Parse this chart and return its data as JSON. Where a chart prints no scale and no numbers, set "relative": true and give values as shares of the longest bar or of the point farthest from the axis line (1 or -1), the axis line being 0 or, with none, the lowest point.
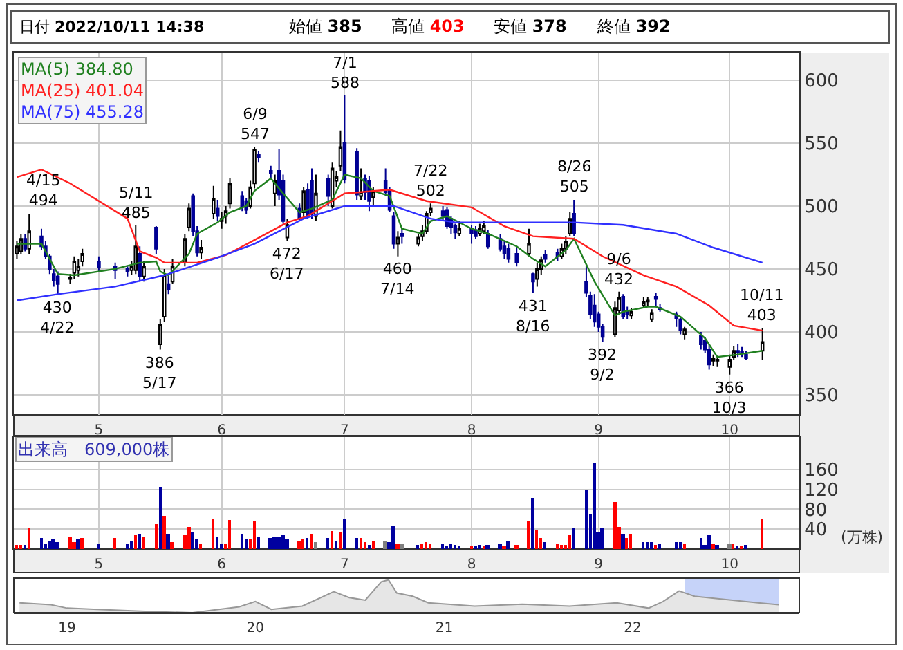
{
  "chart_data": [
    {
      "type": "candlestick",
      "annotations": [
        "日付 2022/10/11 14:38",
        "始値 385",
        "高値 403",
        "安値 378",
        "終値 392",
        {
          "text": "4/15\n494",
          "x": "2022-04-15",
          "y": 494
        },
        {
          "text": "430\n4/22",
          "x": "2022-04-22",
          "y": 430
        },
        {
          "text": "5/11\n485",
          "x": "2022-05-11",
          "y": 485
        },
        {
          "text": "386\n5/17",
          "x": "2022-05-17",
          "y": 386
        },
        {
          "text": "6/9\n547",
          "x": "2022-06-09",
          "y": 547
        },
        {
          "text": "472\n6/17",
          "x": "2022-06-17",
          "y": 472
        },
        {
          "text": "7/1\n588",
          "x": "2022-07-01",
          "y": 588
        },
        {
          "text": "460\n7/14",
          "x": "2022-07-14",
          "y": 460
        },
        {
          "text": "7/22\n502",
          "x": "2022-07-22",
          "y": 502
        },
        {
          "text": "431\n8/16",
          "x": "2022-08-16",
          "y": 431
        },
        {
          "text": "8/26\n505",
          "x": "2022-08-26",
          "y": 505
        },
        {
          "text": "392\n9/2",
          "x": "2022-09-02",
          "y": 392
        },
        {
          "text": "9/6\n432",
          "x": "2022-09-06",
          "y": 432
        },
        {
          "text": "366\n10/3",
          "x": "2022-10-03",
          "y": 366
        },
        {
          "text": "10/11\n403",
          "x": "2022-10-11",
          "y": 403
        }
      ],
      "x": [
        "2022-04-12",
        "2022-04-13",
        "2022-04-14",
        "2022-04-15",
        "2022-04-18",
        "2022-04-19",
        "2022-04-20",
        "2022-04-21",
        "2022-04-22",
        "2022-04-25",
        "2022-04-26",
        "2022-04-27",
        "2022-04-28",
        "2022-05-02",
        "2022-05-06",
        "2022-05-09",
        "2022-05-10",
        "2022-05-11",
        "2022-05-12",
        "2022-05-13",
        "2022-05-16",
        "2022-05-17",
        "2022-05-18",
        "2022-05-19",
        "2022-05-20",
        "2022-05-23",
        "2022-05-24",
        "2022-05-25",
        "2022-05-26",
        "2022-05-27",
        "2022-05-30",
        "2022-05-31",
        "2022-06-01",
        "2022-06-02",
        "2022-06-03",
        "2022-06-06",
        "2022-06-07",
        "2022-06-08",
        "2022-06-09",
        "2022-06-10",
        "2022-06-13",
        "2022-06-14",
        "2022-06-15",
        "2022-06-16",
        "2022-06-17",
        "2022-06-20",
        "2022-06-21",
        "2022-06-22",
        "2022-06-23",
        "2022-06-24",
        "2022-06-27",
        "2022-06-28",
        "2022-06-29",
        "2022-06-30",
        "2022-07-01",
        "2022-07-04",
        "2022-07-05",
        "2022-07-06",
        "2022-07-07",
        "2022-07-08",
        "2022-07-11",
        "2022-07-12",
        "2022-07-13",
        "2022-07-14",
        "2022-07-15",
        "2022-07-19",
        "2022-07-20",
        "2022-07-21",
        "2022-07-22",
        "2022-07-25",
        "2022-07-26",
        "2022-07-27",
        "2022-07-28",
        "2022-07-29",
        "2022-08-01",
        "2022-08-02",
        "2022-08-03",
        "2022-08-04",
        "2022-08-05",
        "2022-08-08",
        "2022-08-09",
        "2022-08-10",
        "2022-08-12",
        "2022-08-15",
        "2022-08-16",
        "2022-08-17",
        "2022-08-18",
        "2022-08-19",
        "2022-08-22",
        "2022-08-23",
        "2022-08-24",
        "2022-08-25",
        "2022-08-26",
        "2022-08-29",
        "2022-08-30",
        "2022-08-31",
        "2022-09-01",
        "2022-09-02",
        "2022-09-05",
        "2022-09-06",
        "2022-09-07",
        "2022-09-08",
        "2022-09-09",
        "2022-09-12",
        "2022-09-13",
        "2022-09-14",
        "2022-09-15",
        "2022-09-16",
        "2022-09-20",
        "2022-09-21",
        "2022-09-22",
        "2022-09-26",
        "2022-09-27",
        "2022-09-28",
        "2022-09-29",
        "2022-09-30",
        "2022-10-03",
        "2022-10-04",
        "2022-10-05",
        "2022-10-06",
        "2022-10-07",
        "2022-10-11"
      ],
      "ohlc": [
        [
          462,
          472,
          458,
          468
        ],
        [
          464,
          478,
          462,
          474
        ],
        [
          474,
          478,
          464,
          466
        ],
        [
          466,
          494,
          462,
          480
        ],
        [
          476,
          482,
          465,
          468
        ],
        [
          468,
          472,
          458,
          460
        ],
        [
          460,
          462,
          446,
          450
        ],
        [
          446,
          450,
          436,
          441
        ],
        [
          444,
          448,
          430,
          438
        ],
        [
          442,
          446,
          438,
          443
        ],
        [
          447,
          460,
          442,
          456
        ],
        [
          449,
          458,
          444,
          452
        ],
        [
          456,
          466,
          452,
          462
        ],
        [
          456,
          460,
          448,
          451
        ],
        [
          452,
          455,
          442,
          449
        ],
        [
          450,
          452,
          444,
          448
        ],
        [
          449,
          456,
          445,
          452
        ],
        [
          449,
          485,
          446,
          468
        ],
        [
          462,
          468,
          440,
          444
        ],
        [
          444,
          456,
          440,
          452
        ],
        [
          483,
          484,
          462,
          466
        ],
        [
          390,
          410,
          386,
          406
        ],
        [
          412,
          450,
          408,
          445
        ],
        [
          438,
          445,
          430,
          434
        ],
        [
          440,
          458,
          438,
          452
        ],
        [
          455,
          478,
          452,
          474
        ],
        [
          483,
          502,
          480,
          498
        ],
        [
          508,
          510,
          476,
          480
        ],
        [
          480,
          484,
          460,
          463
        ],
        [
          463,
          473,
          458,
          467
        ],
        [
          494,
          516,
          490,
          506
        ],
        [
          498,
          505,
          488,
          492
        ],
        [
          488,
          495,
          482,
          490
        ],
        [
          492,
          500,
          486,
          496
        ],
        [
          502,
          522,
          498,
          518
        ],
        [
          508,
          512,
          496,
          500
        ],
        [
          504,
          506,
          494,
          497
        ],
        [
          500,
          520,
          498,
          515
        ],
        [
          518,
          547,
          514,
          545
        ],
        [
          541,
          544,
          535,
          539
        ],
        [
          528,
          532,
          522,
          526
        ],
        [
          510,
          525,
          500,
          520
        ],
        [
          528,
          545,
          505,
          509
        ],
        [
          520,
          525,
          486,
          488
        ],
        [
          475,
          490,
          472,
          485
        ],
        [
          498,
          502,
          488,
          490
        ],
        [
          495,
          515,
          490,
          512
        ],
        [
          513,
          518,
          490,
          492
        ],
        [
          520,
          530,
          490,
          494
        ],
        [
          492,
          525,
          488,
          510
        ],
        [
          522,
          525,
          500,
          508
        ],
        [
          500,
          535,
          498,
          530
        ],
        [
          520,
          528,
          515,
          523
        ],
        [
          532,
          560,
          528,
          547
        ],
        [
          550,
          588,
          518,
          521
        ],
        [
          543,
          546,
          505,
          509
        ],
        [
          508,
          530,
          505,
          511
        ],
        [
          522,
          525,
          505,
          511
        ],
        [
          520,
          524,
          496,
          504
        ],
        [
          507,
          515,
          500,
          512
        ],
        [
          520,
          530,
          508,
          511
        ],
        [
          513,
          515,
          495,
          497
        ],
        [
          492,
          495,
          466,
          470
        ],
        [
          470,
          480,
          460,
          475
        ],
        [
          478,
          482,
          470,
          476
        ],
        [
          470,
          478,
          468,
          475
        ],
        [
          476,
          485,
          472,
          480
        ],
        [
          480,
          496,
          478,
          494
        ],
        [
          495,
          502,
          492,
          498
        ],
        [
          496,
          500,
          488,
          492
        ],
        [
          497,
          499,
          482,
          484
        ],
        [
          490,
          492,
          478,
          483
        ],
        [
          484,
          486,
          474,
          479
        ],
        [
          478,
          488,
          476,
          482
        ],
        [
          482,
          485,
          470,
          478
        ],
        [
          481,
          484,
          474,
          476
        ],
        [
          478,
          486,
          476,
          482
        ],
        [
          480,
          488,
          478,
          484
        ],
        [
          478,
          481,
          466,
          468
        ],
        [
          474,
          478,
          464,
          466
        ],
        [
          468,
          472,
          458,
          462
        ],
        [
          466,
          470,
          455,
          458
        ],
        [
          462,
          468,
          452,
          455
        ],
        [
          462,
          482,
          460,
          470
        ],
        [
          446,
          447,
          431,
          440
        ],
        [
          442,
          455,
          436,
          450
        ],
        [
          450,
          460,
          445,
          457
        ],
        [
          461,
          465,
          455,
          458
        ],
        [
          463,
          466,
          456,
          460
        ],
        [
          460,
          470,
          458,
          466
        ],
        [
          466,
          476,
          462,
          472
        ],
        [
          478,
          495,
          476,
          490
        ],
        [
          494,
          505,
          476,
          478
        ],
        [
          440,
          453,
          428,
          431
        ],
        [
          429,
          432,
          410,
          414
        ],
        [
          421,
          430,
          404,
          408
        ],
        [
          414,
          416,
          400,
          404
        ],
        [
          404,
          406,
          392,
          396
        ],
        [
          398,
          424,
          396,
          419
        ],
        [
          417,
          432,
          414,
          427
        ],
        [
          428,
          430,
          410,
          412
        ],
        [
          417,
          420,
          410,
          414
        ],
        [
          413,
          419,
          410,
          416
        ],
        [
          421,
          428,
          419,
          424
        ],
        [
          424,
          428,
          420,
          425
        ],
        [
          410,
          418,
          408,
          415
        ],
        [
          428,
          431,
          420,
          426
        ],
        [
          419,
          422,
          416,
          418
        ],
        [
          414,
          416,
          404,
          411
        ],
        [
          410,
          412,
          398,
          401
        ],
        [
          398,
          404,
          394,
          402
        ],
        [
          397,
          400,
          386,
          390
        ],
        [
          393,
          396,
          383,
          386
        ],
        [
          386,
          390,
          370,
          374
        ],
        [
          377,
          382,
          373,
          379
        ],
        [
          377,
          381,
          372,
          378
        ],
        [
          372,
          382,
          366,
          378
        ],
        [
          380,
          389,
          378,
          385
        ],
        [
          385,
          390,
          380,
          384
        ],
        [
          384,
          388,
          380,
          383
        ],
        [
          382,
          385,
          378,
          379
        ],
        [
          385,
          403,
          378,
          392
        ]
      ],
      "series": [
        {
          "type": "line",
          "name": "MA(5) 384.80",
          "color": "#208020",
          "x": [
            "2022-04-12",
            "2022-04-18",
            "2022-04-22",
            "2022-04-26",
            "2022-05-06",
            "2022-05-12",
            "2022-05-16",
            "2022-05-17",
            "2022-05-19",
            "2022-05-24",
            "2022-05-26",
            "2022-05-31",
            "2022-06-03",
            "2022-06-07",
            "2022-06-09",
            "2022-06-13",
            "2022-06-16",
            "2022-06-20",
            "2022-06-23",
            "2022-06-28",
            "2022-07-01",
            "2022-07-05",
            "2022-07-08",
            "2022-07-12",
            "2022-07-15",
            "2022-07-20",
            "2022-07-22",
            "2022-07-26",
            "2022-08-01",
            "2022-08-05",
            "2022-08-12",
            "2022-08-16",
            "2022-08-19",
            "2022-08-24",
            "2022-08-26",
            "2022-08-31",
            "2022-09-05",
            "2022-09-07",
            "2022-09-13",
            "2022-09-15",
            "2022-09-21",
            "2022-09-27",
            "2022-09-30",
            "2022-10-05",
            "2022-10-11"
          ],
          "values": [
            470,
            470,
            446,
            445,
            450,
            455,
            456,
            448,
            445,
            462,
            478,
            487,
            495,
            500,
            512,
            522,
            510,
            495,
            498,
            505,
            525,
            522,
            512,
            508,
            482,
            478,
            488,
            492,
            482,
            478,
            468,
            458,
            452,
            465,
            474,
            440,
            413,
            416,
            420,
            420,
            412,
            395,
            380,
            382,
            385
          ]
        },
        {
          "type": "line",
          "name": "MA(25) 401.04",
          "color": "#ff2020",
          "x": [
            "2022-04-12",
            "2022-04-18",
            "2022-04-25",
            "2022-05-09",
            "2022-05-12",
            "2022-05-16",
            "2022-05-18",
            "2022-05-26",
            "2022-06-02",
            "2022-06-09",
            "2022-06-17",
            "2022-06-22",
            "2022-07-01",
            "2022-07-12",
            "2022-07-21",
            "2022-08-01",
            "2022-08-09",
            "2022-08-16",
            "2022-08-26",
            "2022-09-02",
            "2022-09-12",
            "2022-09-20",
            "2022-09-28",
            "2022-10-04",
            "2022-10-11"
          ],
          "values": [
            523,
            529,
            518,
            490,
            464,
            459,
            455,
            455,
            461,
            473,
            487,
            492,
            510,
            513,
            504,
            499,
            484,
            476,
            474,
            460,
            445,
            436,
            421,
            405,
            401
          ]
        },
        {
          "type": "line",
          "name": "MA(75) 455.28",
          "color": "#3030ff",
          "x": [
            "2022-04-12",
            "2022-04-22",
            "2022-05-06",
            "2022-05-18",
            "2022-05-31",
            "2022-06-09",
            "2022-06-21",
            "2022-07-01",
            "2022-07-13",
            "2022-07-22",
            "2022-07-28",
            "2022-08-09",
            "2022-08-26",
            "2022-09-07",
            "2022-09-20",
            "2022-09-29",
            "2022-10-11"
          ],
          "values": [
            425,
            430,
            436,
            445,
            459,
            470,
            490,
            500,
            500,
            490,
            487,
            487,
            487,
            485,
            478,
            467,
            455
          ]
        }
      ],
      "xlim": [
        "2022-04-11T06:00",
        "2022-10-20"
      ],
      "xticks": [
        {
          "value": "2022-05-02",
          "label": "5"
        },
        {
          "value": "2022-06-01",
          "label": "6"
        },
        {
          "value": "2022-07-01",
          "label": "7"
        },
        {
          "value": "2022-08-01",
          "label": "8"
        },
        {
          "value": "2022-09-01",
          "label": "9"
        },
        {
          "value": "2022-10-03",
          "label": "10"
        }
      ],
      "ylim": [
        334,
        622
      ],
      "yticks": [
        350,
        400,
        450,
        500,
        550,
        600
      ],
      "grid": true,
      "legend": "top left"
    },
    {
      "type": "bar",
      "title": "出来高　609,000株",
      "ylabel": "(万株)",
      "x": [
        "2022-04-12",
        "2022-04-13",
        "2022-04-14",
        "2022-04-15",
        "2022-04-18",
        "2022-04-19",
        "2022-04-20",
        "2022-04-21",
        "2022-04-22",
        "2022-04-25",
        "2022-04-26",
        "2022-04-27",
        "2022-04-28",
        "2022-05-02",
        "2022-05-06",
        "2022-05-09",
        "2022-05-10",
        "2022-05-11",
        "2022-05-12",
        "2022-05-13",
        "2022-05-16",
        "2022-05-17",
        "2022-05-18",
        "2022-05-19",
        "2022-05-20",
        "2022-05-23",
        "2022-05-24",
        "2022-05-25",
        "2022-05-26",
        "2022-05-27",
        "2022-05-30",
        "2022-05-31",
        "2022-06-01",
        "2022-06-02",
        "2022-06-03",
        "2022-06-06",
        "2022-06-07",
        "2022-06-08",
        "2022-06-09",
        "2022-06-10",
        "2022-06-13",
        "2022-06-14",
        "2022-06-15",
        "2022-06-16",
        "2022-06-17",
        "2022-06-20",
        "2022-06-21",
        "2022-06-22",
        "2022-06-23",
        "2022-06-24",
        "2022-06-27",
        "2022-06-28",
        "2022-06-29",
        "2022-06-30",
        "2022-07-01",
        "2022-07-04",
        "2022-07-05",
        "2022-07-06",
        "2022-07-07",
        "2022-07-08",
        "2022-07-11",
        "2022-07-12",
        "2022-07-13",
        "2022-07-14",
        "2022-07-15",
        "2022-07-19",
        "2022-07-20",
        "2022-07-21",
        "2022-07-22",
        "2022-07-25",
        "2022-07-26",
        "2022-07-27",
        "2022-07-28",
        "2022-07-29",
        "2022-08-01",
        "2022-08-02",
        "2022-08-03",
        "2022-08-04",
        "2022-08-05",
        "2022-08-08",
        "2022-08-09",
        "2022-08-10",
        "2022-08-12",
        "2022-08-15",
        "2022-08-16",
        "2022-08-17",
        "2022-08-18",
        "2022-08-19",
        "2022-08-22",
        "2022-08-23",
        "2022-08-24",
        "2022-08-25",
        "2022-08-26",
        "2022-08-29",
        "2022-08-30",
        "2022-08-31",
        "2022-09-01",
        "2022-09-02",
        "2022-09-05",
        "2022-09-06",
        "2022-09-07",
        "2022-09-08",
        "2022-09-09",
        "2022-09-12",
        "2022-09-13",
        "2022-09-14",
        "2022-09-15",
        "2022-09-16",
        "2022-09-20",
        "2022-09-21",
        "2022-09-22",
        "2022-09-26",
        "2022-09-27",
        "2022-09-28",
        "2022-09-29",
        "2022-09-30",
        "2022-10-03",
        "2022-10-04",
        "2022-10-05",
        "2022-10-06",
        "2022-10-07",
        "2022-10-11"
      ],
      "values": [
        8,
        8,
        8,
        42,
        22,
        11,
        17,
        20,
        14,
        25,
        14,
        20,
        22,
        11,
        22,
        11,
        17,
        28,
        31,
        25,
        50,
        125,
        67,
        31,
        14,
        28,
        45,
        33,
        20,
        11,
        61,
        25,
        11,
        11,
        59,
        31,
        20,
        20,
        56,
        25,
        22,
        25,
        25,
        28,
        20,
        17,
        20,
        22,
        31,
        14,
        22,
        36,
        17,
        33,
        61,
        22,
        22,
        14,
        8,
        17,
        17,
        14,
        47,
        11,
        11,
        8,
        11,
        14,
        11,
        11,
        6,
        11,
        8,
        6,
        6,
        6,
        8,
        6,
        8,
        11,
        6,
        16,
        7,
        56,
        103,
        39,
        22,
        14,
        11,
        8,
        8,
        28,
        42,
        120,
        70,
        173,
        33,
        42,
        95,
        45,
        31,
        22,
        31,
        14,
        14,
        14,
        8,
        11,
        14,
        14,
        11,
        22,
        8,
        28,
        11,
        8,
        11,
        11,
        6,
        6,
        8,
        61
      ],
      "colors": [
        "#ff0000",
        "#ff0000",
        "#0000a0",
        "#ff0000",
        "#0000a0",
        "#0000a0",
        "#0000a0",
        "#0000a0",
        "#0000a0",
        "#ff0000",
        "#ff0000",
        "#0000a0",
        "#ff0000",
        "#0000a0",
        "#ff0000",
        "#0000a0",
        "#0000a0",
        "#ff0000",
        "#0000a0",
        "#ff0000",
        "#ff0000",
        "#0000a0",
        "#ff0000",
        "#0000a0",
        "#ff0000",
        "#ff0000",
        "#ff0000",
        "#0000a0",
        "#0000a0",
        "#ff0000",
        "#ff0000",
        "#0000a0",
        "#0000a0",
        "#ff0000",
        "#ff0000",
        "#0000a0",
        "#0000a0",
        "#ff0000",
        "#ff0000",
        "#0000a0",
        "#0000a0",
        "#0000a0",
        "#0000a0",
        "#0000a0",
        "#0000a0",
        "#ff0000",
        "#ff0000",
        "#0000a0",
        "#ff0000",
        "#808080",
        "#0000a0",
        "#ff0000",
        "#0000a0",
        "#ff0000",
        "#0000a0",
        "#0000a0",
        "#ff0000",
        "#ff0000",
        "#0000a0",
        "#ff0000",
        "#808080",
        "#0000a0",
        "#0000a0",
        "#ff0000",
        "#808080",
        "#0000a0",
        "#ff0000",
        "#ff0000",
        "#ff0000",
        "#0000a0",
        "#0000a0",
        "#0000a0",
        "#0000a0",
        "#0000a0",
        "#ff0000",
        "#0000a0",
        "#0000a0",
        "#ff0000",
        "#0000a0",
        "#0000a0",
        "#ff0000",
        "#0000a0",
        "#ff0000",
        "#ff0000",
        "#0000a0",
        "#ff0000",
        "#ff0000",
        "#0000a0",
        "#ff0000",
        "#ff0000",
        "#ff0000",
        "#ff0000",
        "#0000a0",
        "#0000a0",
        "#0000a0",
        "#0000a0",
        "#0000a0",
        "#0000a0",
        "#ff0000",
        "#ff0000",
        "#0000a0",
        "#ff0000",
        "#ff0000",
        "#0000a0",
        "#0000a0",
        "#0000a0",
        "#ff0000",
        "#0000a0",
        "#0000a0",
        "#0000a0",
        "#ff0000",
        "#0000a0",
        "#0000a0",
        "#0000a0",
        "#ff0000",
        "#0000a0",
        "#808080",
        "#ff0000",
        "#0000a0",
        "#ff0000",
        "#0000a0",
        "#ff0000"
      ],
      "xlim": [
        "2022-04-11T06:00",
        "2022-10-20"
      ],
      "xticks": [
        {
          "value": "2022-05-02",
          "label": "5"
        },
        {
          "value": "2022-06-01",
          "label": "6"
        },
        {
          "value": "2022-07-01",
          "label": "7"
        },
        {
          "value": "2022-08-01",
          "label": "8"
        },
        {
          "value": "2022-09-01",
          "label": "9"
        },
        {
          "value": "2022-10-03",
          "label": "10"
        }
      ],
      "ylim": [
        0,
        225
      ],
      "yticks": [
        40,
        80,
        120,
        160
      ],
      "grid": true
    },
    {
      "type": "area",
      "relative": true,
      "color": "#999999",
      "tick_labels": "x",
      "x": [
        "2018-10",
        "2018-12",
        "2019-01",
        "2019-03",
        "2019-06",
        "2019-09",
        "2019-12",
        "2020-01",
        "2020-02",
        "2020-04",
        "2020-06",
        "2020-07",
        "2020-08",
        "2020-09",
        "2020-09-15",
        "2020-10",
        "2020-11",
        "2020-12",
        "2021-03",
        "2021-06",
        "2021-09",
        "2021-12",
        "2022-02",
        "2022-03",
        "2022-04",
        "2022-05",
        "2022-07",
        "2022-09",
        "2022-10-11"
      ],
      "values": [
        0.3,
        0.24,
        0.14,
        0.1,
        0.04,
        0,
        0.18,
        0.34,
        0.1,
        0.2,
        0.64,
        0.46,
        0.38,
        0.94,
        1,
        0.6,
        0.5,
        0.3,
        0.2,
        0.26,
        0.2,
        0.3,
        0.14,
        0.34,
        0.66,
        0.5,
        0.4,
        0.3,
        0.24
      ],
      "xlim": [
        "2018-09-20",
        "2022-11-20"
      ],
      "xticks": [
        {
          "value": "2019-01-01",
          "label": "19"
        },
        {
          "value": "2020-01-01",
          "label": "20"
        },
        {
          "value": "2021-01-01",
          "label": "21"
        },
        {
          "value": "2022-01-01",
          "label": "22"
        }
      ],
      "bands": [
        {
          "axis": "x",
          "from": "2022-04-12",
          "to": "2022-10-11",
          "color": "#b8c8f8"
        }
      ]
    }
  ]
}
